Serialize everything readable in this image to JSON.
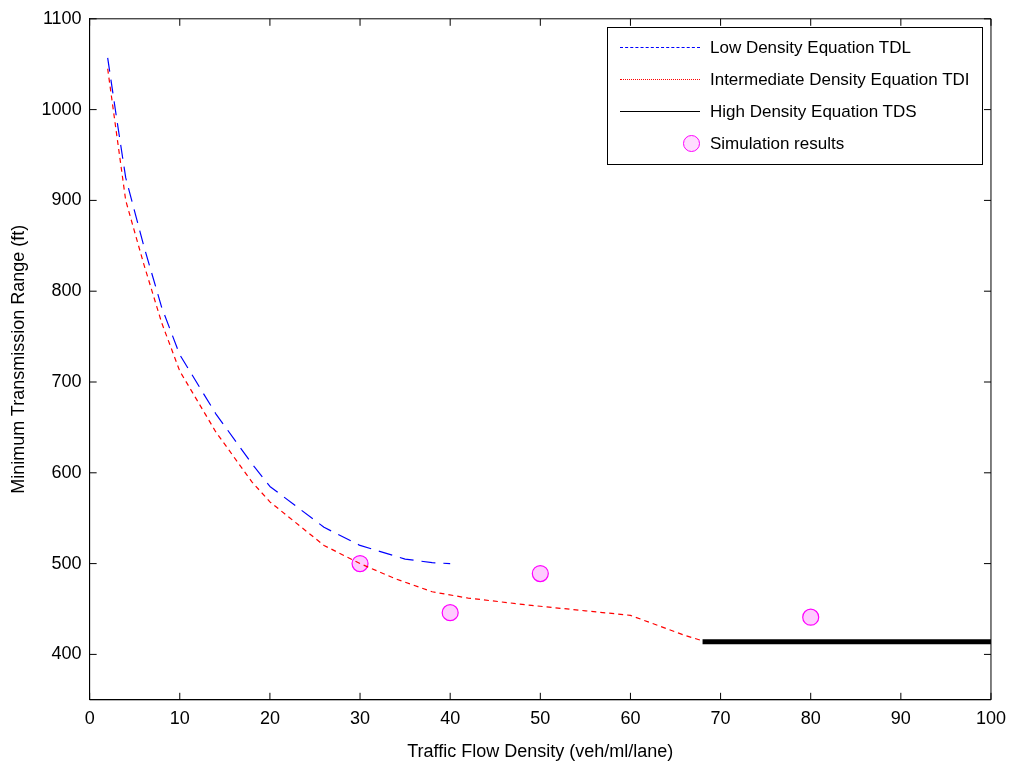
{
  "chart_data": {
    "type": "line",
    "xlabel": "Traffic Flow Density (veh/ml/lane)",
    "ylabel": "Minimum Transmission Range (ft)",
    "xlim": [
      0,
      100
    ],
    "xticks": [
      0,
      10,
      20,
      30,
      40,
      50,
      60,
      70,
      80,
      90,
      100
    ],
    "ylim": [
      350,
      1100
    ],
    "yticks": [
      400,
      500,
      600,
      700,
      800,
      900,
      1000,
      1100
    ],
    "grid": false,
    "legend": "top right",
    "series": [
      {
        "name": "Low Density Equation TDL",
        "color": "#0000ff",
        "line_style": "dashed",
        "marker": "none",
        "x": [
          2,
          3,
          4,
          6,
          8,
          10,
          14,
          18,
          20,
          26,
          30,
          35,
          38,
          40
        ],
        "values": [
          1057,
          990,
          925,
          850,
          782,
          730,
          665,
          610,
          585,
          540,
          520,
          505,
          501,
          500
        ]
      },
      {
        "name": "Intermediate Density Equation TDI",
        "color": "#ff0000",
        "line_style": "dotted",
        "marker": "none",
        "x": [
          2,
          4,
          6,
          8,
          10,
          14,
          18,
          20,
          26,
          30,
          34,
          38,
          42,
          49,
          55,
          60,
          63,
          66,
          68
        ],
        "values": [
          1045,
          900,
          830,
          765,
          712,
          645,
          590,
          568,
          520,
          500,
          483,
          469,
          462,
          454,
          448,
          443,
          432,
          421,
          415
        ]
      },
      {
        "name": "High Density Equation TDS",
        "color": "#000000",
        "line_style": "solid",
        "marker": "none",
        "x": [
          68,
          100
        ],
        "values": [
          414,
          414
        ]
      },
      {
        "name": "Simulation results",
        "type": "scatter",
        "color": "#ff00ff",
        "marker": "circle",
        "x": [
          30,
          40,
          50,
          80
        ],
        "values": [
          500,
          446,
          489,
          441
        ]
      }
    ]
  }
}
